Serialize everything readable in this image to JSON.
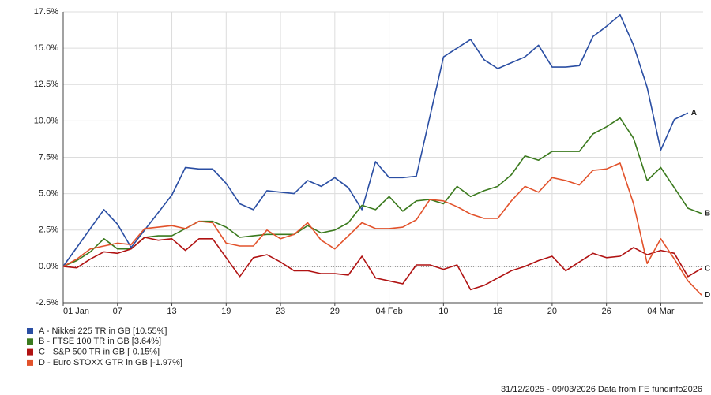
{
  "chart_data": {
    "type": "line",
    "categories": [
      "01 Jan",
      null,
      null,
      null,
      "07",
      null,
      null,
      null,
      "13",
      null,
      null,
      null,
      "19",
      null,
      null,
      null,
      "23",
      null,
      null,
      null,
      "29",
      null,
      null,
      null,
      "04 Feb",
      null,
      null,
      null,
      "10",
      null,
      null,
      null,
      "16",
      null,
      null,
      null,
      "20",
      null,
      null,
      null,
      "26",
      null,
      null,
      null,
      "04 Mar",
      null,
      null,
      null
    ],
    "series": [
      {
        "name": "A - Nikkei 225 TR in GB [10.55%]",
        "label": "A",
        "color": "#2a4ea3",
        "values": [
          0,
          1.3,
          2.6,
          3.9,
          2.9,
          1.3,
          2.5,
          3.7,
          4.9,
          6.8,
          6.7,
          6.7,
          5.7,
          4.3,
          3.9,
          5.2,
          5.1,
          5.0,
          5.9,
          5.5,
          6.1,
          5.4,
          3.9,
          7.2,
          6.1,
          6.1,
          6.2,
          10.3,
          14.4,
          15.0,
          15.6,
          14.2,
          13.6,
          14.0,
          14.4,
          15.2,
          13.7,
          13.7,
          13.8,
          15.8,
          16.5,
          17.3,
          15.2,
          12.3,
          8.0,
          10.1,
          10.55,
          null
        ]
      },
      {
        "name": "B - FTSE 100 TR in GB [3.64%]",
        "label": "B",
        "color": "#3b7a1e",
        "values": [
          0,
          0.4,
          1.0,
          1.9,
          1.2,
          1.2,
          2.0,
          2.1,
          2.1,
          2.6,
          3.1,
          3.1,
          2.7,
          2.0,
          2.1,
          2.2,
          2.2,
          2.2,
          2.8,
          2.3,
          2.5,
          3.0,
          4.2,
          3.9,
          4.8,
          3.8,
          4.5,
          4.6,
          4.3,
          5.5,
          4.8,
          5.2,
          5.5,
          6.3,
          7.6,
          7.3,
          7.9,
          7.9,
          7.9,
          9.1,
          9.6,
          10.2,
          8.8,
          5.9,
          6.8,
          5.4,
          4.0,
          3.64
        ]
      },
      {
        "name": "C - S&P 500 TR in GB [-0.15%]",
        "label": "C",
        "color": "#b01212",
        "values": [
          0,
          -0.1,
          0.5,
          1.0,
          0.9,
          1.2,
          2.0,
          1.8,
          1.9,
          1.1,
          1.9,
          1.9,
          0.6,
          -0.7,
          0.6,
          0.8,
          0.3,
          -0.3,
          -0.3,
          -0.5,
          -0.5,
          -0.6,
          0.7,
          -0.8,
          -1.0,
          -1.2,
          0.1,
          0.1,
          -0.2,
          0.1,
          -1.6,
          -1.3,
          -0.8,
          -0.3,
          0.0,
          0.4,
          0.7,
          -0.3,
          0.3,
          0.9,
          0.6,
          0.7,
          1.3,
          0.8,
          1.1,
          0.9,
          -0.7,
          -0.15
        ]
      },
      {
        "name": "D - Euro STOXX GTR in GB [-1.97%]",
        "label": "D",
        "color": "#e2522b",
        "values": [
          0,
          0.5,
          1.2,
          1.4,
          1.6,
          1.5,
          2.6,
          2.7,
          2.8,
          2.6,
          3.1,
          3.0,
          1.6,
          1.4,
          1.4,
          2.5,
          1.9,
          2.2,
          3.0,
          1.8,
          1.2,
          2.1,
          3.0,
          2.6,
          2.6,
          2.7,
          3.2,
          4.6,
          4.5,
          4.1,
          3.6,
          3.3,
          3.3,
          4.5,
          5.5,
          5.1,
          6.1,
          5.9,
          5.6,
          6.6,
          6.7,
          7.1,
          4.3,
          0.2,
          1.9,
          0.5,
          -1.0,
          -1.97
        ]
      }
    ],
    "ylim": [
      -2.5,
      17.5
    ],
    "yticks": [
      {
        "value": -2.5,
        "label": "-2.5%"
      },
      {
        "value": 0,
        "label": "0.0%"
      },
      {
        "value": 2.5,
        "label": "2.5%"
      },
      {
        "value": 5,
        "label": "5.0%"
      },
      {
        "value": 7.5,
        "label": "7.5%"
      },
      {
        "value": 10,
        "label": "10.0%"
      },
      {
        "value": 12.5,
        "label": "12.5%"
      },
      {
        "value": 15,
        "label": "15.0%"
      },
      {
        "value": 17.5,
        "label": "17.5%"
      }
    ],
    "grid": true,
    "footer": "31/12/2025 - 09/03/2026 Data from FE fundinfo2026"
  }
}
